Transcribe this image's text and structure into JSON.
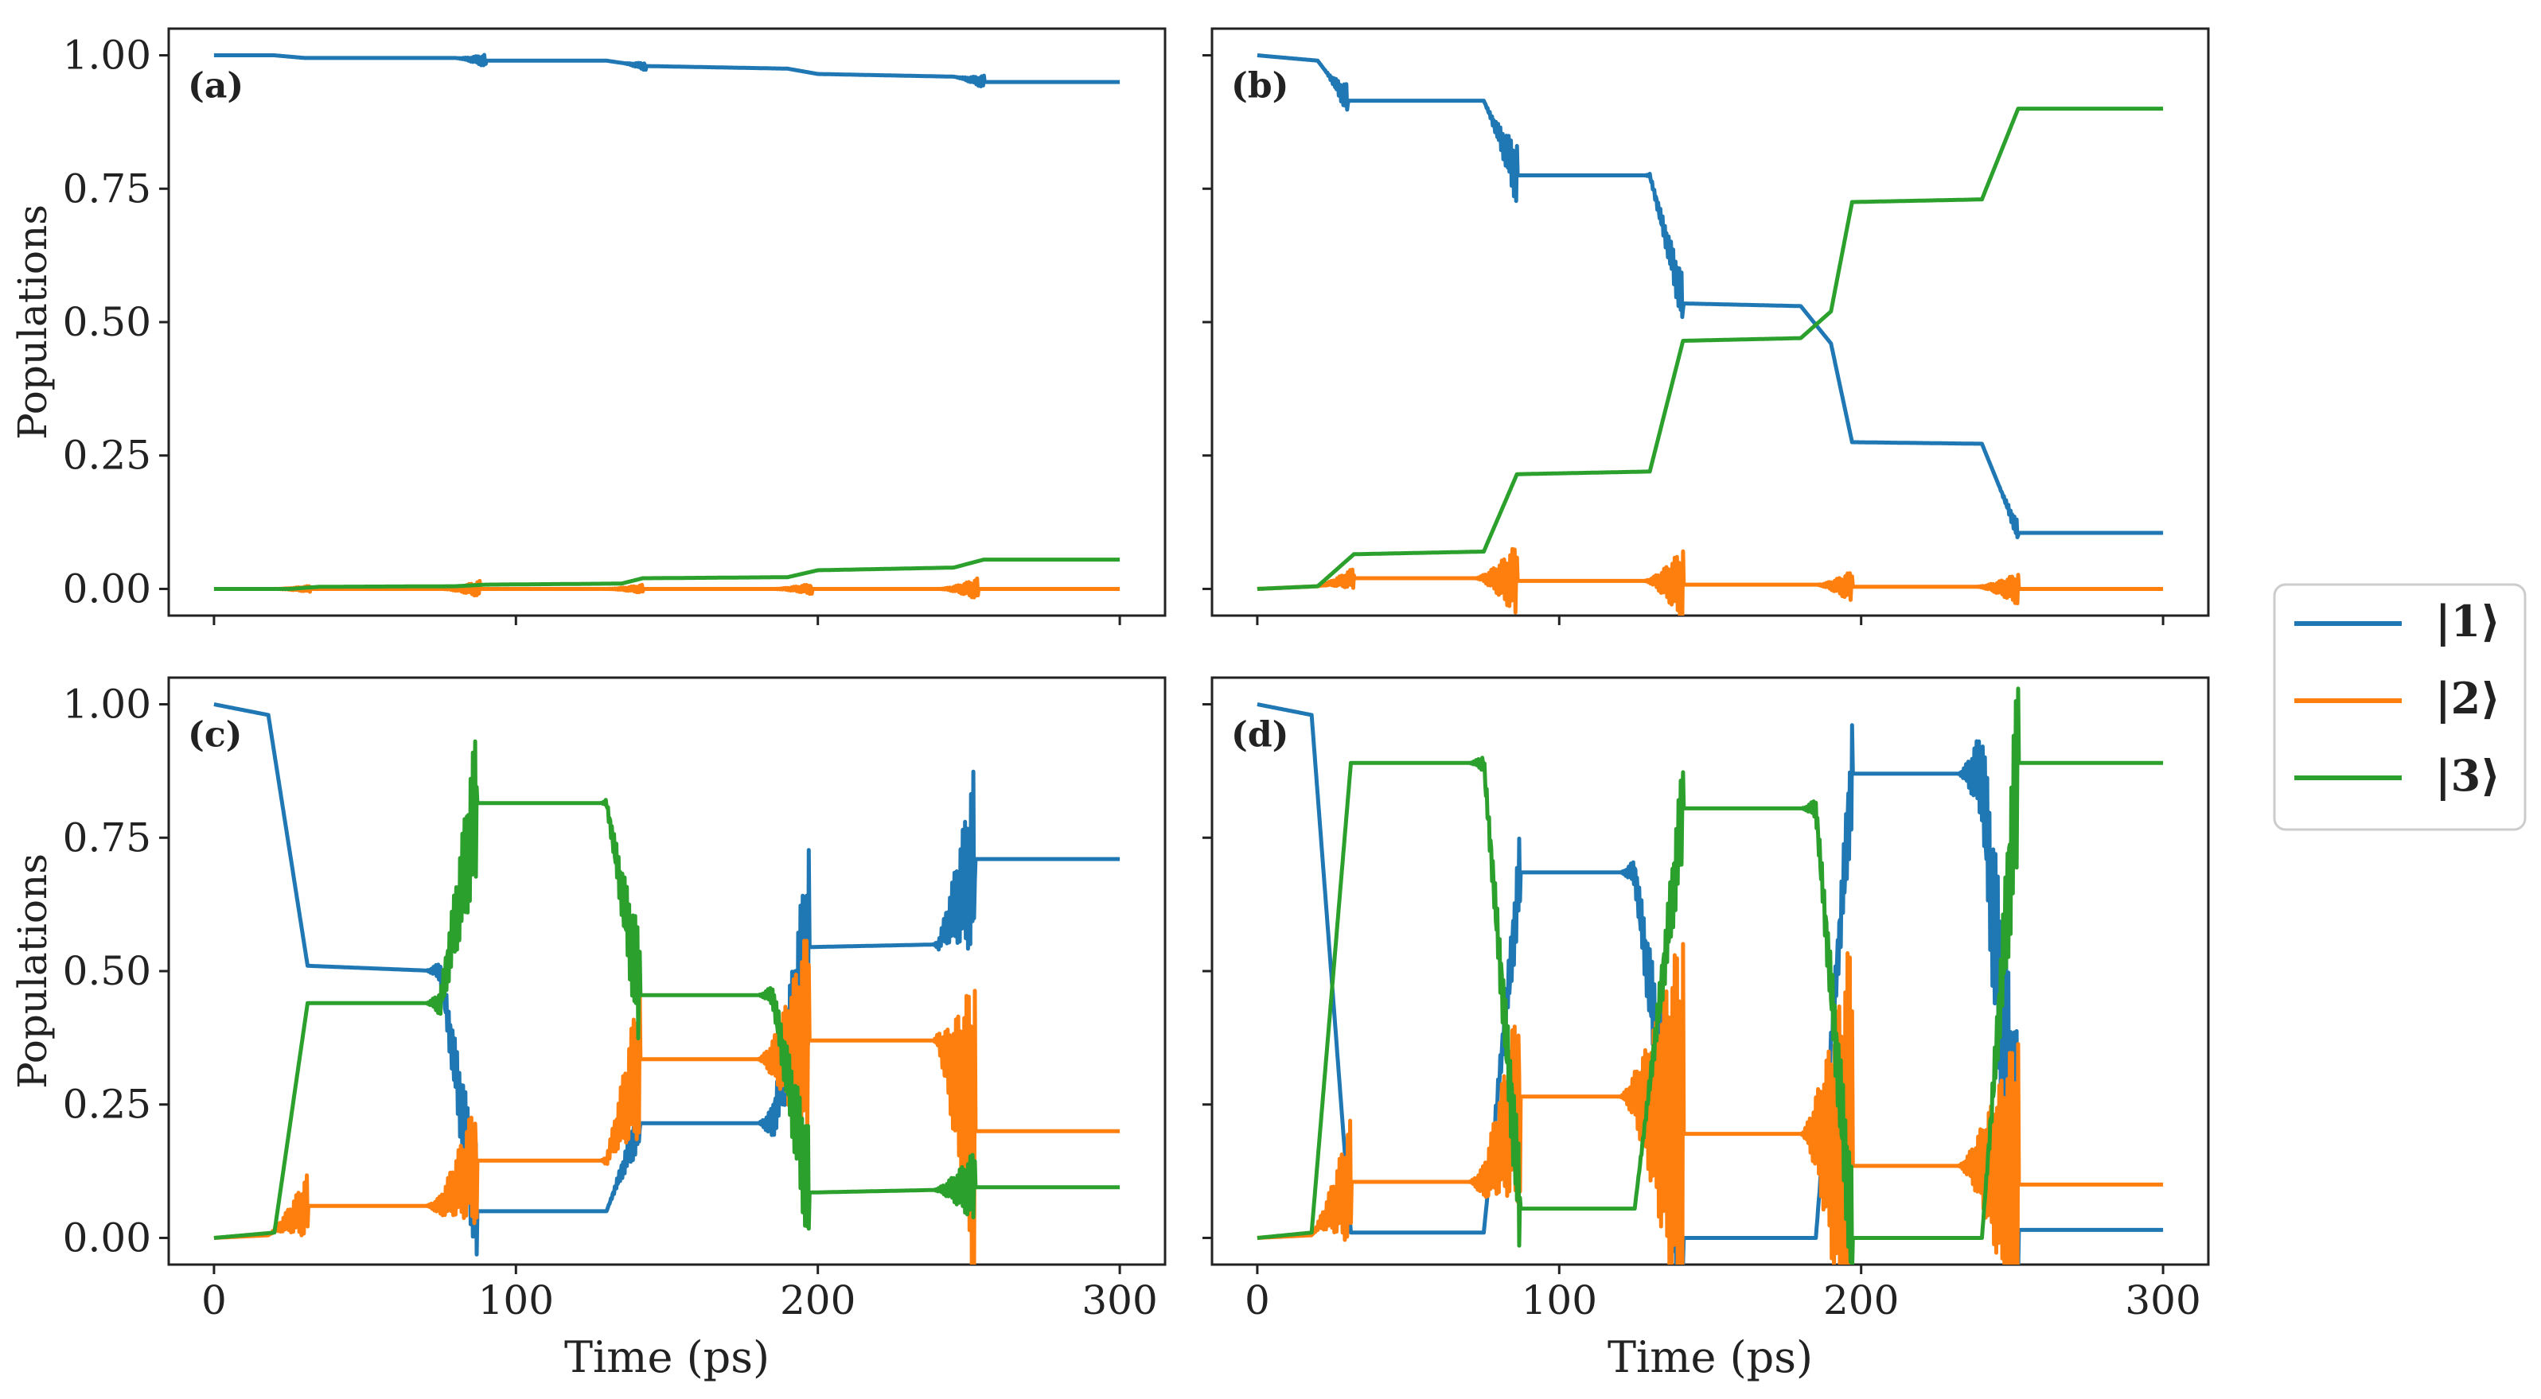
{
  "colors": {
    "state1": "#1f77b4",
    "state2": "#ff7f0e",
    "state3": "#2ca02c",
    "axis": "#222222"
  },
  "legend": {
    "items": [
      {
        "label": "|1⟩",
        "color": "#1f77b4"
      },
      {
        "label": "|2⟩",
        "color": "#ff7f0e"
      },
      {
        "label": "|3⟩",
        "color": "#2ca02c"
      }
    ]
  },
  "chart_data": [
    {
      "type": "line",
      "panel_label": "(a)",
      "xlabel": "",
      "ylabel": "Populations",
      "xlim": [
        -15,
        315
      ],
      "ylim": [
        -0.05,
        1.05
      ],
      "xticks": [
        0,
        100,
        200,
        300
      ],
      "yticks": [
        0.0,
        0.25,
        0.5,
        0.75,
        1.0
      ],
      "ytick_labels": [
        "0.00",
        "0.25",
        "0.50",
        "0.75",
        "1.00"
      ],
      "series": [
        {
          "name": "|1⟩",
          "x": [
            0,
            20,
            30,
            80,
            90,
            130,
            142,
            190,
            200,
            245,
            255,
            300
          ],
          "values": [
            1.0,
            1.0,
            0.995,
            0.995,
            0.99,
            0.99,
            0.98,
            0.975,
            0.965,
            0.96,
            0.95,
            0.95
          ],
          "osc": [
            [
              80,
              90,
              0.012
            ],
            [
              135,
              143,
              0.008
            ],
            [
              245,
              255,
              0.012
            ]
          ]
        },
        {
          "name": "|2⟩",
          "x": [
            0,
            300
          ],
          "values": [
            0.0,
            0.0
          ],
          "osc": [
            [
              20,
              32,
              0.006
            ],
            [
              75,
              88,
              0.015
            ],
            [
              130,
              142,
              0.008
            ],
            [
              185,
              198,
              0.01
            ],
            [
              240,
              253,
              0.02
            ]
          ]
        },
        {
          "name": "|3⟩",
          "x": [
            0,
            25,
            35,
            80,
            90,
            135,
            142,
            190,
            200,
            245,
            255,
            300
          ],
          "values": [
            0.0,
            0.0,
            0.004,
            0.005,
            0.008,
            0.01,
            0.02,
            0.022,
            0.035,
            0.04,
            0.055,
            0.055
          ]
        }
      ]
    },
    {
      "type": "line",
      "panel_label": "(b)",
      "xlabel": "",
      "ylabel": "",
      "xlim": [
        -15,
        315
      ],
      "ylim": [
        -0.05,
        1.05
      ],
      "xticks": [
        0,
        100,
        200,
        300
      ],
      "yticks": [
        0.0,
        0.25,
        0.5,
        0.75,
        1.0
      ],
      "ytick_labels": [
        "",
        "",
        "",
        "",
        ""
      ],
      "series": [
        {
          "name": "|1⟩",
          "x": [
            0,
            20,
            30,
            75,
            86,
            130,
            141,
            180,
            190,
            197,
            240,
            252,
            300
          ],
          "values": [
            1.0,
            0.99,
            0.915,
            0.915,
            0.775,
            0.775,
            0.535,
            0.53,
            0.46,
            0.275,
            0.272,
            0.105,
            0.105
          ],
          "osc": [
            [
              22,
              30,
              0.03
            ],
            [
              75,
              86,
              0.06
            ],
            [
              128,
              141,
              0.05
            ],
            [
              245,
              252,
              0.02
            ]
          ]
        },
        {
          "name": "|2⟩",
          "x": [
            0,
            20,
            32,
            75,
            86,
            130,
            141,
            185,
            197,
            240,
            252,
            300
          ],
          "values": [
            0.0,
            0.005,
            0.02,
            0.02,
            0.015,
            0.015,
            0.008,
            0.008,
            0.004,
            0.004,
            0.0,
            0.0
          ],
          "osc": [
            [
              20,
              32,
              0.02
            ],
            [
              72,
              86,
              0.07
            ],
            [
              128,
              141,
              0.07
            ],
            [
              185,
              197,
              0.03
            ],
            [
              238,
              252,
              0.03
            ]
          ]
        },
        {
          "name": "|3⟩",
          "x": [
            0,
            20,
            32,
            75,
            86,
            130,
            141,
            180,
            190,
            197,
            240,
            252,
            300
          ],
          "values": [
            0.0,
            0.005,
            0.065,
            0.07,
            0.215,
            0.22,
            0.465,
            0.47,
            0.52,
            0.725,
            0.73,
            0.9,
            0.9
          ]
        }
      ]
    },
    {
      "type": "line",
      "panel_label": "(c)",
      "xlabel": "Time (ps)",
      "ylabel": "Populations",
      "xlim": [
        -15,
        315
      ],
      "ylim": [
        -0.05,
        1.05
      ],
      "xticks": [
        0,
        100,
        200,
        300
      ],
      "xtick_labels": [
        "0",
        "100",
        "200",
        "300"
      ],
      "yticks": [
        0.0,
        0.25,
        0.5,
        0.75,
        1.0
      ],
      "ytick_labels": [
        "0.00",
        "0.25",
        "0.50",
        "0.75",
        "1.00"
      ],
      "series": [
        {
          "name": "|1⟩",
          "x": [
            0,
            18,
            31,
            75,
            87,
            130,
            141,
            185,
            197,
            240,
            252,
            300
          ],
          "values": [
            1.0,
            0.98,
            0.51,
            0.5,
            0.05,
            0.05,
            0.215,
            0.215,
            0.545,
            0.55,
            0.71,
            0.71
          ],
          "osc": [
            [
              70,
              87,
              0.12
            ],
            [
              130,
              141,
              0.05
            ],
            [
              180,
              197,
              0.2
            ],
            [
              238,
              252,
              0.18
            ]
          ]
        },
        {
          "name": "|2⟩",
          "x": [
            0,
            18,
            31,
            75,
            87,
            130,
            141,
            185,
            197,
            240,
            252,
            300
          ],
          "values": [
            0.0,
            0.005,
            0.06,
            0.06,
            0.145,
            0.145,
            0.335,
            0.335,
            0.37,
            0.37,
            0.2,
            0.2
          ],
          "osc": [
            [
              18,
              31,
              0.06
            ],
            [
              70,
              87,
              0.12
            ],
            [
              128,
              141,
              0.15
            ],
            [
              180,
              197,
              0.22
            ],
            [
              238,
              252,
              0.3
            ]
          ]
        },
        {
          "name": "|3⟩",
          "x": [
            0,
            20,
            31,
            75,
            87,
            130,
            141,
            185,
            197,
            240,
            252,
            300
          ],
          "values": [
            0.0,
            0.01,
            0.44,
            0.44,
            0.815,
            0.815,
            0.455,
            0.455,
            0.085,
            0.09,
            0.095,
            0.095
          ],
          "osc": [
            [
              70,
              87,
              0.15
            ],
            [
              128,
              141,
              0.12
            ],
            [
              180,
              197,
              0.12
            ],
            [
              238,
              252,
              0.07
            ]
          ]
        }
      ]
    },
    {
      "type": "line",
      "panel_label": "(d)",
      "xlabel": "Time (ps)",
      "ylabel": "",
      "xlim": [
        -15,
        315
      ],
      "ylim": [
        -0.05,
        1.05
      ],
      "xticks": [
        0,
        100,
        200,
        300
      ],
      "xtick_labels": [
        "0",
        "100",
        "200",
        "300"
      ],
      "yticks": [
        0.0,
        0.25,
        0.5,
        0.75,
        1.0
      ],
      "ytick_labels": [
        "",
        "",
        "",
        "",
        ""
      ],
      "series": [
        {
          "name": "|1⟩",
          "x": [
            0,
            18,
            31,
            75,
            87,
            125,
            141,
            185,
            197,
            240,
            252,
            300
          ],
          "values": [
            1.0,
            0.98,
            0.01,
            0.01,
            0.685,
            0.685,
            0.0,
            0.0,
            0.87,
            0.87,
            0.015,
            0.015
          ],
          "osc": [
            [
              75,
              87,
              0.08
            ],
            [
              120,
              141,
              0.22
            ],
            [
              185,
              197,
              0.1
            ],
            [
              232,
              252,
              0.35
            ]
          ]
        },
        {
          "name": "|2⟩",
          "x": [
            0,
            18,
            31,
            75,
            87,
            125,
            141,
            185,
            197,
            240,
            252,
            300
          ],
          "values": [
            0.0,
            0.005,
            0.105,
            0.105,
            0.265,
            0.265,
            0.195,
            0.195,
            0.135,
            0.135,
            0.1,
            0.1
          ],
          "osc": [
            [
              18,
              31,
              0.12
            ],
            [
              70,
              87,
              0.2
            ],
            [
              120,
              141,
              0.4
            ],
            [
              180,
              197,
              0.45
            ],
            [
              232,
              252,
              0.3
            ]
          ]
        },
        {
          "name": "|3⟩",
          "x": [
            0,
            18,
            31,
            75,
            87,
            125,
            141,
            185,
            197,
            240,
            252,
            300
          ],
          "values": [
            0.0,
            0.01,
            0.89,
            0.89,
            0.055,
            0.055,
            0.805,
            0.805,
            0.0,
            0.0,
            0.89,
            0.89
          ],
          "osc": [
            [
              70,
              87,
              0.1
            ],
            [
              125,
              141,
              0.1
            ],
            [
              180,
              197,
              0.12
            ],
            [
              240,
              252,
              0.2
            ]
          ]
        }
      ]
    }
  ]
}
